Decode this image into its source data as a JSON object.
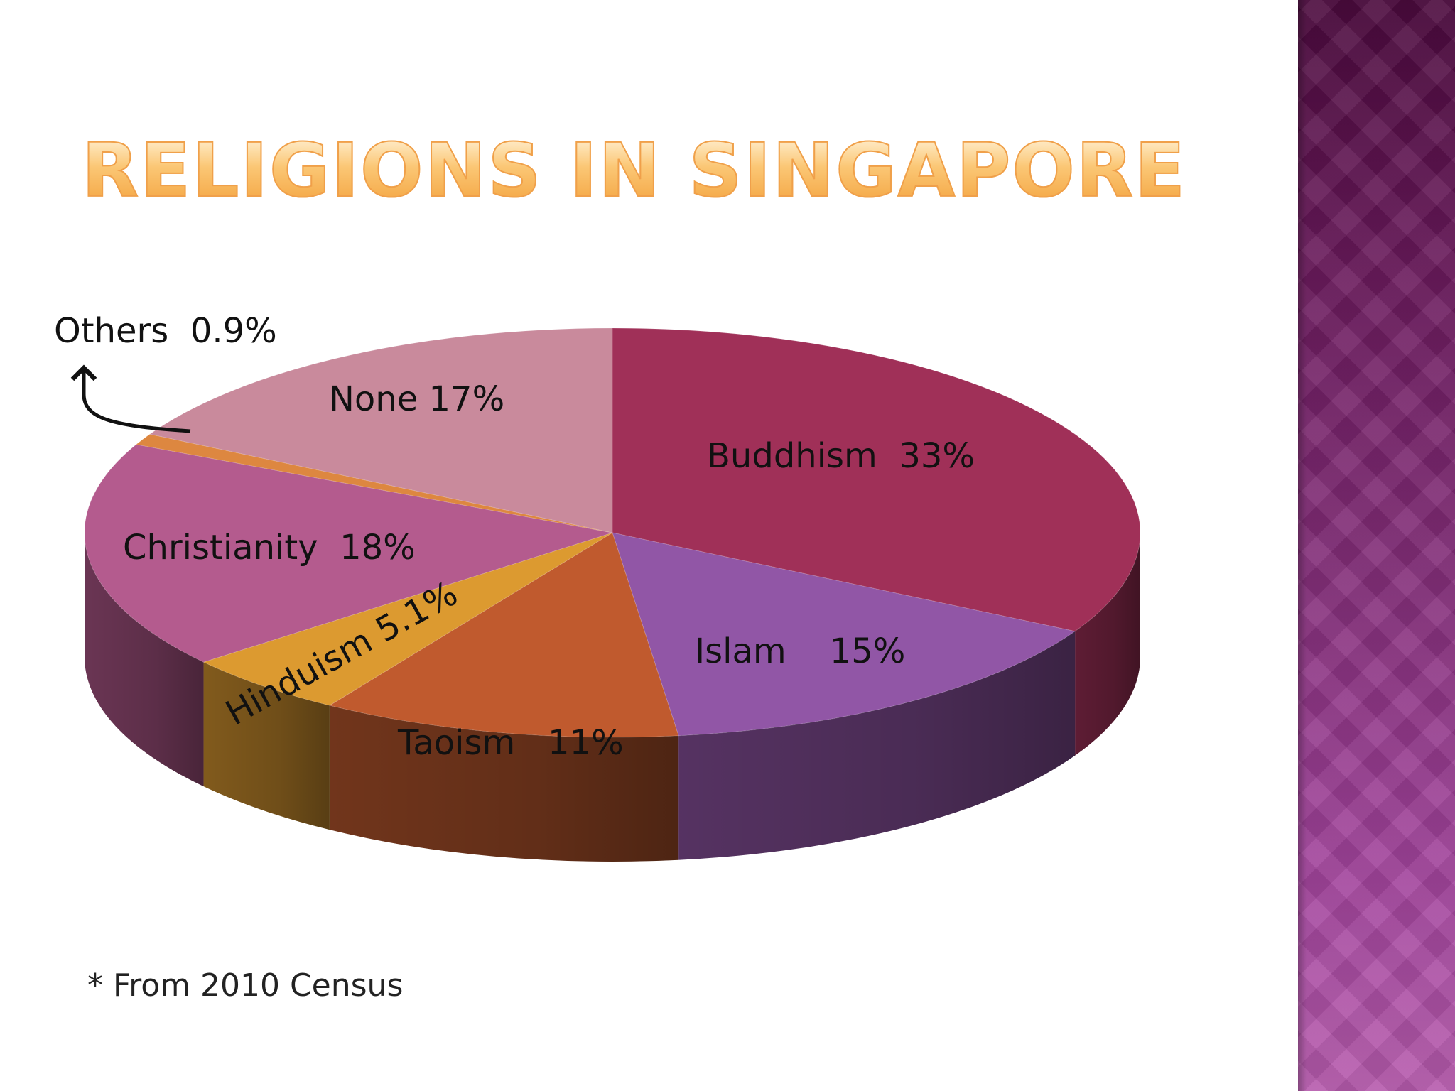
{
  "slide": {
    "title": "Religions in Singapore",
    "footnote": "* From 2010 Census"
  },
  "colors": {
    "side_band_top": "#4b0a3d",
    "side_band_bottom": "#b65bad",
    "title_gradient_top": "#fff3d9",
    "title_gradient_bottom": "#f3a33f"
  },
  "chart_data": {
    "type": "pie",
    "style": "3d",
    "title": "",
    "categories": [
      "Buddhism",
      "Islam",
      "Taoism",
      "Hinduism",
      "Christianity",
      "Others",
      "None"
    ],
    "values": [
      33,
      15,
      11,
      5.1,
      18,
      0.9,
      17
    ],
    "unit": "%",
    "data_labels": [
      "Buddhism  33%",
      "Islam    15%",
      "Taoism   11%",
      "Hinduism 5.1%",
      "Christianity  18%",
      "Others  0.9%",
      "None 17%"
    ],
    "colors": [
      "#a03058",
      "#9156a6",
      "#c05a2e",
      "#dc9a30",
      "#b45b8e",
      "#dd8740",
      "#c98a9c"
    ],
    "callout": "Others",
    "legend": "none"
  }
}
